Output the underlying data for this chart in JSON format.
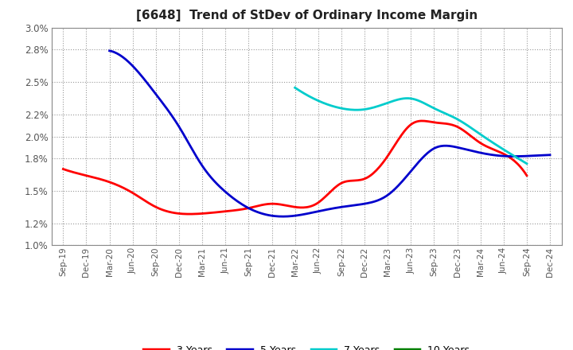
{
  "title": "[6648]  Trend of StDev of Ordinary Income Margin",
  "title_fontsize": 11,
  "background_color": "#ffffff",
  "plot_bg_color": "#ffffff",
  "grid_color": "#aaaaaa",
  "ylim": [
    0.01,
    0.03
  ],
  "yticks": [
    0.01,
    0.012,
    0.015,
    0.018,
    0.02,
    0.022,
    0.025,
    0.028,
    0.03
  ],
  "x_labels": [
    "Sep-19",
    "Dec-19",
    "Mar-20",
    "Jun-20",
    "Sep-20",
    "Dec-20",
    "Mar-21",
    "Jun-21",
    "Sep-21",
    "Dec-21",
    "Mar-22",
    "Jun-22",
    "Sep-22",
    "Dec-22",
    "Mar-23",
    "Jun-23",
    "Sep-23",
    "Dec-23",
    "Mar-24",
    "Jun-24",
    "Sep-24",
    "Dec-24"
  ],
  "series": {
    "3 Years": {
      "color": "#ff0000",
      "data": [
        0.017,
        0.0164,
        0.0158,
        0.0148,
        0.0135,
        0.0129,
        0.0129,
        0.0131,
        0.0134,
        0.0138,
        0.0135,
        0.0139,
        0.0157,
        0.0161,
        0.0182,
        0.0211,
        0.0213,
        0.0209,
        0.0194,
        0.0184,
        0.0164,
        null
      ]
    },
    "5 Years": {
      "color": "#0000cc",
      "data": [
        null,
        null,
        0.0279,
        0.0265,
        0.0239,
        0.0209,
        0.0173,
        0.0149,
        0.0134,
        0.0127,
        0.0127,
        0.0131,
        0.0135,
        0.0138,
        0.0146,
        0.0168,
        0.0189,
        0.019,
        0.0185,
        0.0182,
        0.0182,
        0.0183
      ]
    },
    "7 Years": {
      "color": "#00cccc",
      "data": [
        null,
        null,
        null,
        null,
        null,
        null,
        null,
        null,
        null,
        null,
        0.0245,
        0.0233,
        0.0226,
        0.0225,
        0.0231,
        0.0235,
        0.0226,
        0.0216,
        0.0202,
        0.0188,
        0.0175,
        null
      ]
    },
    "10 Years": {
      "color": "#008000",
      "data": [
        null,
        null,
        null,
        null,
        null,
        null,
        null,
        null,
        null,
        null,
        null,
        null,
        null,
        null,
        null,
        null,
        null,
        null,
        null,
        null,
        null,
        null
      ]
    }
  }
}
